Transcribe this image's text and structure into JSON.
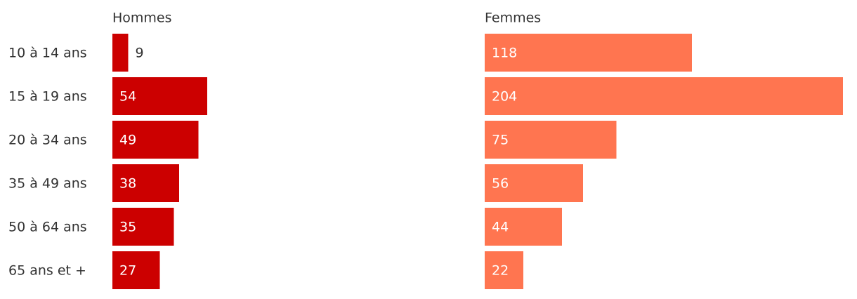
{
  "chart_data": {
    "type": "bar",
    "categories": [
      "10 à 14 ans",
      "15 à 19 ans",
      "20 à 34 ans",
      "35 à 49 ans",
      "50 à 64 ans",
      "65 ans et +"
    ],
    "series": [
      {
        "name": "Hommes",
        "color": "#cc0000",
        "values": [
          9,
          54,
          49,
          38,
          35,
          27
        ]
      },
      {
        "name": "Femmes",
        "color": "#ff7550",
        "values": [
          118,
          204,
          75,
          56,
          44,
          22
        ]
      }
    ]
  }
}
